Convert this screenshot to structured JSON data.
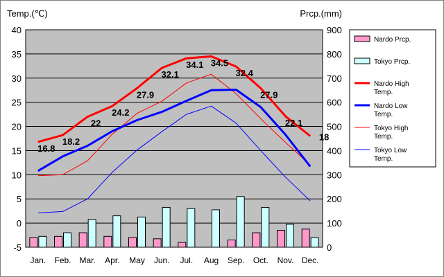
{
  "chart_data": {
    "type": "bar+line",
    "categories": [
      "Jan.",
      "Feb.",
      "Mar.",
      "Apr.",
      "May",
      "Jun.",
      "Jul.",
      "Aug",
      "Sep.",
      "Oct.",
      "Nov.",
      "Dec."
    ],
    "left_axis": {
      "label": "Temp.(℃)",
      "min": -5,
      "max": 40,
      "ticks": [
        -5,
        0,
        5,
        10,
        15,
        20,
        25,
        30,
        35,
        40
      ]
    },
    "right_axis": {
      "label": "Prcp.(mm)",
      "min": 0,
      "max": 900,
      "ticks": [
        0,
        100,
        200,
        300,
        400,
        500,
        600,
        700,
        800,
        900
      ]
    },
    "background": "#c0c0c0",
    "bars": [
      {
        "name": "Nardo Prcp.",
        "color": "#ff99cc",
        "values": [
          40,
          45,
          60,
          45,
          40,
          35,
          20,
          0,
          30,
          60,
          70,
          75
        ]
      },
      {
        "name": "Tokyo Prcp.",
        "color": "#ccffff",
        "values": [
          45,
          60,
          115,
          130,
          125,
          165,
          160,
          155,
          210,
          165,
          95,
          40
        ]
      }
    ],
    "lines": [
      {
        "name": "Nardo High Temp.",
        "color": "#ff0000",
        "width": 3,
        "values": [
          16.8,
          18.2,
          22,
          24.2,
          27.9,
          32.1,
          34.1,
          34.5,
          32.4,
          27.9,
          22.1,
          18
        ]
      },
      {
        "name": "Nardo Low Temp.",
        "color": "#0000ff",
        "width": 3,
        "values": [
          10.8,
          13.8,
          16.0,
          19.0,
          21.3,
          23.0,
          25.3,
          27.5,
          27.6,
          24.0,
          18.3,
          11.7
        ]
      },
      {
        "name": "Tokyo High Temp.",
        "color": "#ff0000",
        "width": 1,
        "values": [
          9.8,
          10.0,
          12.9,
          18.4,
          22.7,
          25.2,
          29.0,
          30.8,
          26.8,
          21.6,
          16.7,
          12.0
        ]
      },
      {
        "name": "Tokyo Low Temp.",
        "color": "#0000ff",
        "width": 1,
        "values": [
          2.1,
          2.4,
          5.0,
          10.5,
          15.1,
          18.9,
          22.5,
          24.2,
          20.7,
          15.0,
          9.5,
          4.6
        ]
      }
    ],
    "data_labels": [
      "16.8",
      "18.2",
      "22",
      "24.2",
      "27.9",
      "32.1",
      "34.1",
      "34.5",
      "32.4",
      "27.9",
      "22.1",
      "18"
    ],
    "legend": [
      "Nardo Prcp.",
      "Tokyo Prcp.",
      "Nardo High Temp.",
      "Nardo Low Temp.",
      "Tokyo High Temp.",
      "Tokyo Low Temp."
    ],
    "legend_position": "right",
    "grid": true
  }
}
